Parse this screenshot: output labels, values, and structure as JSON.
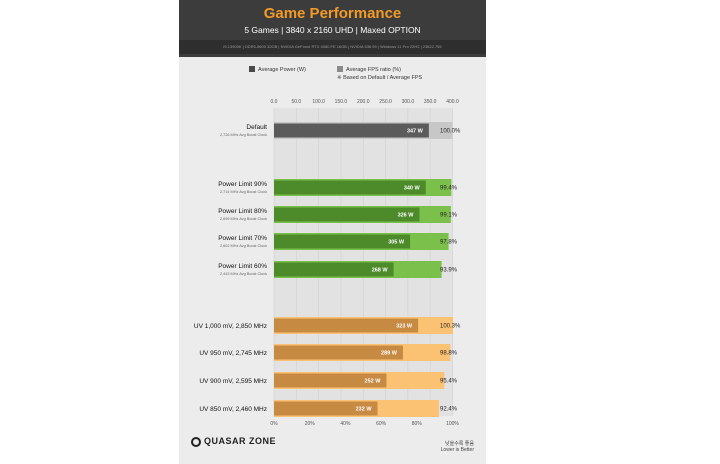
{
  "header": {
    "title": "Game Performance",
    "subtitle": "5 Games  |  3840 x 2160 UHD  |  Maxed OPTION",
    "specs": "i9-13900K  |  DDR5-5600 32GB  |  NVIDIA GeForce RTX 4080 FE 16GB  |  NVIDIA 536.99  |  Windows 11 Pro 22H2  |  23622.755"
  },
  "legend": {
    "power": "Average Power (W)",
    "fps": "Average FPS ratio (%)",
    "fps_note": "※ Based on Default / Average FPS"
  },
  "footer": {
    "logo": "QUASAR ZONE",
    "note_ko": "낮을수록 좋음",
    "note_en": "Lower is Better"
  },
  "colors": {
    "default_power": "#5b5b5b",
    "default_ratio": "#c7c7c7",
    "pl_power": "#4d8a2a",
    "pl_ratio": "#7cc04c",
    "uv_power": "#c78a43",
    "uv_ratio": "#fbc274"
  },
  "chart_data": {
    "type": "bar",
    "orientation": "horizontal",
    "top_axis": {
      "label": "Average Power (W)",
      "range": [
        0,
        400
      ],
      "ticks": [
        "0.0",
        "50.0",
        "100.0",
        "150.0",
        "200.0",
        "250.0",
        "300.0",
        "350.0",
        "400.0"
      ]
    },
    "bottom_axis": {
      "label": "Average FPS ratio (%)",
      "range": [
        0,
        100
      ],
      "ticks": [
        "0%",
        "20%",
        "40%",
        "60%",
        "80%",
        "100%"
      ]
    },
    "grid": true,
    "rows": [
      {
        "label": "Default",
        "sub": "2,726 MHz Avg Boost Clock",
        "group": "default",
        "power": 347,
        "power_label": "347 W",
        "ratio": 100.0,
        "ratio_label": "100.0%"
      },
      {
        "label": "Power Limit 90%",
        "sub": "2,714 MHz Avg Boost Clock",
        "group": "pl",
        "power": 340,
        "power_label": "340 W",
        "ratio": 99.4,
        "ratio_label": "99.4%"
      },
      {
        "label": "Power Limit 80%",
        "sub": "2,699 MHz Avg Boost Clock",
        "group": "pl",
        "power": 326,
        "power_label": "326 W",
        "ratio": 99.1,
        "ratio_label": "99.1%"
      },
      {
        "label": "Power Limit 70%",
        "sub": "2,602 MHz Avg Boost Clock",
        "group": "pl",
        "power": 305,
        "power_label": "305 W",
        "ratio": 97.8,
        "ratio_label": "97.8%"
      },
      {
        "label": "Power Limit 60%",
        "sub": "2,443 MHz Avg Boost Clock",
        "group": "pl",
        "power": 268,
        "power_label": "268 W",
        "ratio": 93.9,
        "ratio_label": "93.9%"
      },
      {
        "label": "UV 1,000 mV, 2,850 MHz",
        "sub": "",
        "group": "uv",
        "power": 323,
        "power_label": "323 W",
        "ratio": 100.3,
        "ratio_label": "100.3%"
      },
      {
        "label": "UV 950 mV, 2,745 MHz",
        "sub": "",
        "group": "uv",
        "power": 289,
        "power_label": "289 W",
        "ratio": 98.8,
        "ratio_label": "98.8%"
      },
      {
        "label": "UV 900 mV, 2,595 MHz",
        "sub": "",
        "group": "uv",
        "power": 252,
        "power_label": "252 W",
        "ratio": 95.4,
        "ratio_label": "95.4%"
      },
      {
        "label": "UV 850 mV, 2,460 MHz",
        "sub": "",
        "group": "uv",
        "power": 232,
        "power_label": "232 W",
        "ratio": 92.4,
        "ratio_label": "92.4%"
      }
    ]
  }
}
